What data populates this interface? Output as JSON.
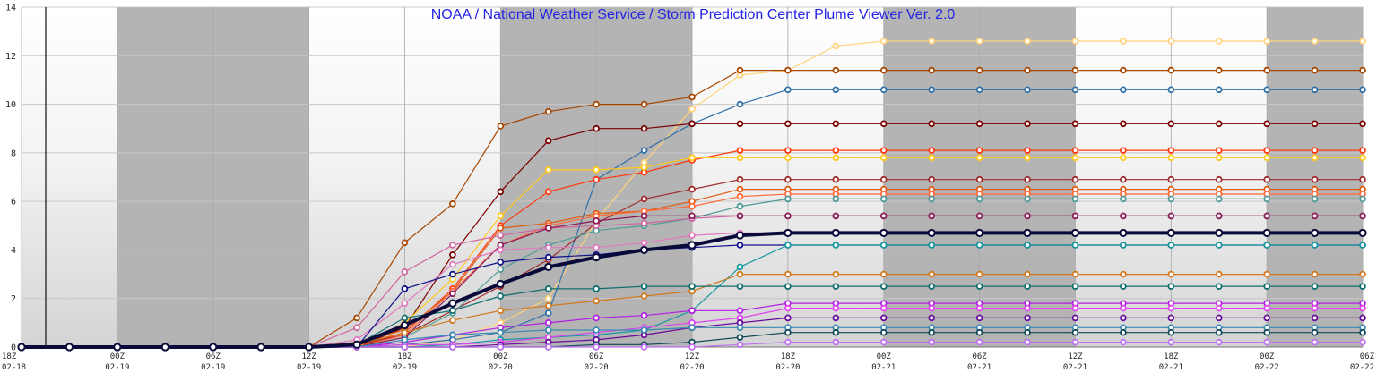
{
  "chart_data": {
    "type": "line",
    "title": "NOAA / National Weather Service / Storm Prediction Center Plume Viewer Ver. 2.0",
    "xlabel": "",
    "ylabel": "",
    "ylim": [
      0,
      14
    ],
    "y_ticks": [
      "0",
      "2",
      "4",
      "6",
      "8",
      "10",
      "12",
      "14"
    ],
    "x_tick_labels": [
      [
        "18Z",
        "02-18"
      ],
      [
        "00Z",
        "02-19"
      ],
      [
        "06Z",
        "02-19"
      ],
      [
        "12Z",
        "02-19"
      ],
      [
        "18Z",
        "02-19"
      ],
      [
        "00Z",
        "02-20"
      ],
      [
        "06Z",
        "02-20"
      ],
      [
        "12Z",
        "02-20"
      ],
      [
        "18Z",
        "02-20"
      ],
      [
        "00Z",
        "02-21"
      ],
      [
        "06Z",
        "02-21"
      ],
      [
        "12Z",
        "02-21"
      ],
      [
        "18Z",
        "02-21"
      ],
      [
        "00Z",
        "02-22"
      ],
      [
        "06Z",
        "02-22"
      ]
    ],
    "x_hours": [
      0,
      3,
      6,
      9,
      12,
      15,
      18,
      21,
      24,
      27,
      30,
      33,
      36,
      39,
      42,
      45,
      48,
      51,
      54,
      57,
      60,
      63,
      66,
      69,
      72,
      75,
      78,
      81,
      84
    ],
    "night_shading": [
      [
        6,
        18
      ],
      [
        30,
        42
      ],
      [
        54,
        66
      ],
      [
        78,
        84
      ]
    ],
    "grid": true,
    "series": [
      {
        "color": "#ffd27a",
        "values": [
          0,
          0,
          0,
          0,
          0,
          0,
          0,
          0,
          0,
          0.3,
          1.0,
          2.0,
          5.2,
          7.6,
          9.8,
          11.2,
          11.4,
          12.4,
          12.6,
          12.6,
          12.6,
          12.6,
          12.6,
          12.6,
          12.6,
          12.6,
          12.6,
          12.6,
          12.6
        ]
      },
      {
        "color": "#a64600",
        "values": [
          0,
          0,
          0,
          0,
          0,
          0,
          0,
          1.2,
          4.3,
          5.9,
          9.1,
          9.7,
          10.0,
          10.0,
          10.3,
          11.4,
          11.4,
          11.4,
          11.4,
          11.4,
          11.4,
          11.4,
          11.4,
          11.4,
          11.4,
          11.4,
          11.4,
          11.4,
          11.4
        ]
      },
      {
        "color": "#2f6fa8",
        "values": [
          0,
          0,
          0,
          0,
          0,
          0,
          0,
          0,
          0.1,
          0.3,
          0.6,
          1.4,
          6.9,
          8.1,
          9.2,
          10.0,
          10.6,
          10.6,
          10.6,
          10.6,
          10.6,
          10.6,
          10.6,
          10.6,
          10.6,
          10.6,
          10.6,
          10.6,
          10.6
        ]
      },
      {
        "color": "#7a0000",
        "values": [
          0,
          0,
          0,
          0,
          0,
          0,
          0,
          0,
          0.8,
          3.8,
          6.4,
          8.5,
          9.0,
          9.0,
          9.2,
          9.2,
          9.2,
          9.2,
          9.2,
          9.2,
          9.2,
          9.2,
          9.2,
          9.2,
          9.2,
          9.2,
          9.2,
          9.2,
          9.2
        ]
      },
      {
        "color": "#ff3a10",
        "values": [
          0,
          0,
          0,
          0,
          0,
          0,
          0,
          0,
          0.6,
          2.4,
          5.0,
          6.4,
          6.9,
          7.2,
          7.7,
          8.1,
          8.1,
          8.1,
          8.1,
          8.1,
          8.1,
          8.1,
          8.1,
          8.1,
          8.1,
          8.1,
          8.1,
          8.1,
          8.1
        ]
      },
      {
        "color": "#ffc81a",
        "values": [
          0,
          0,
          0,
          0,
          0,
          0,
          0,
          0,
          1.0,
          2.8,
          5.4,
          7.3,
          7.3,
          7.4,
          7.8,
          7.8,
          7.8,
          7.8,
          7.8,
          7.8,
          7.8,
          7.8,
          7.8,
          7.8,
          7.8,
          7.8,
          7.8,
          7.8,
          7.8
        ]
      },
      {
        "color": "#9e2a2a",
        "values": [
          0,
          0,
          0,
          0,
          0,
          0,
          0,
          0.1,
          0.5,
          1.5,
          2.5,
          3.6,
          5.1,
          6.1,
          6.5,
          6.9,
          6.9,
          6.9,
          6.9,
          6.9,
          6.9,
          6.9,
          6.9,
          6.9,
          6.9,
          6.9,
          6.9,
          6.9,
          6.9
        ]
      },
      {
        "color": "#e05a10",
        "values": [
          0,
          0,
          0,
          0,
          0,
          0,
          0,
          0.2,
          0.7,
          2.3,
          4.9,
          5.1,
          5.5,
          5.6,
          6.0,
          6.5,
          6.5,
          6.5,
          6.5,
          6.5,
          6.5,
          6.5,
          6.5,
          6.5,
          6.5,
          6.5,
          6.5,
          6.5,
          6.5
        ]
      },
      {
        "color": "#ff6a3a",
        "values": [
          0,
          0,
          0,
          0,
          0,
          0,
          0,
          0,
          0.5,
          2.3,
          4.2,
          5.0,
          5.4,
          5.6,
          5.8,
          6.2,
          6.3,
          6.3,
          6.3,
          6.3,
          6.3,
          6.3,
          6.3,
          6.3,
          6.3,
          6.3,
          6.3,
          6.3,
          6.3
        ]
      },
      {
        "color": "#4e9a96",
        "values": [
          0,
          0,
          0,
          0,
          0,
          0,
          0,
          0,
          0.4,
          1.4,
          3.2,
          4.2,
          4.8,
          5.0,
          5.3,
          5.8,
          6.1,
          6.1,
          6.1,
          6.1,
          6.1,
          6.1,
          6.1,
          6.1,
          6.1,
          6.1,
          6.1,
          6.1,
          6.1
        ]
      },
      {
        "color": "#d066a0",
        "values": [
          0,
          0,
          0,
          0,
          0,
          0,
          0,
          0.8,
          3.1,
          4.2,
          4.6,
          4.9,
          5.0,
          5.1,
          5.3,
          5.4,
          5.4,
          5.4,
          5.4,
          5.4,
          5.4,
          5.4,
          5.4,
          5.4,
          5.4,
          5.4,
          5.4,
          5.4,
          5.4
        ]
      },
      {
        "color": "#8a1a55",
        "values": [
          0,
          0,
          0,
          0,
          0,
          0,
          0,
          0,
          0.4,
          2.2,
          4.2,
          4.9,
          5.2,
          5.4,
          5.4,
          5.4,
          5.4,
          5.4,
          5.4,
          5.4,
          5.4,
          5.4,
          5.4,
          5.4,
          5.4,
          5.4,
          5.4,
          5.4,
          5.4
        ]
      },
      {
        "color": "#e079c0",
        "values": [
          0,
          0,
          0,
          0,
          0,
          0,
          0,
          0.3,
          1.8,
          3.4,
          4.0,
          4.1,
          4.1,
          4.3,
          4.6,
          4.7,
          4.7,
          4.7,
          4.7,
          4.7,
          4.7,
          4.7,
          4.7,
          4.7,
          4.7,
          4.7,
          4.7,
          4.7,
          4.7
        ]
      },
      {
        "color": "#0a0a3a",
        "values": [
          0,
          0,
          0,
          0,
          0,
          0,
          0,
          0.1,
          0.9,
          1.8,
          2.6,
          3.3,
          3.7,
          4.0,
          4.2,
          4.6,
          4.7,
          4.7,
          4.7,
          4.7,
          4.7,
          4.7,
          4.7,
          4.7,
          4.7,
          4.7,
          4.7,
          4.7,
          4.7
        ],
        "bold": true
      },
      {
        "color": "#10108a",
        "values": [
          0,
          0,
          0,
          0,
          0,
          0,
          0,
          0,
          2.4,
          3.0,
          3.5,
          3.7,
          3.8,
          4.0,
          4.1,
          4.2,
          4.2,
          4.2,
          4.2,
          4.2,
          4.2,
          4.2,
          4.2,
          4.2,
          4.2,
          4.2,
          4.2,
          4.2,
          4.2
        ]
      },
      {
        "color": "#1a9aa0",
        "values": [
          0,
          0,
          0,
          0,
          0,
          0,
          0,
          0,
          0,
          0.1,
          0.3,
          0.4,
          0.5,
          0.7,
          1.5,
          3.3,
          4.2,
          4.2,
          4.2,
          4.2,
          4.2,
          4.2,
          4.2,
          4.2,
          4.2,
          4.2,
          4.2,
          4.2,
          4.2
        ]
      },
      {
        "color": "#d07a20",
        "values": [
          0,
          0,
          0,
          0,
          0,
          0,
          0,
          0.1,
          0.6,
          1.1,
          1.5,
          1.7,
          1.9,
          2.1,
          2.3,
          3.0,
          3.0,
          3.0,
          3.0,
          3.0,
          3.0,
          3.0,
          3.0,
          3.0,
          3.0,
          3.0,
          3.0,
          3.0,
          3.0
        ]
      },
      {
        "color": "#0e6e6e",
        "values": [
          0,
          0,
          0,
          0,
          0,
          0,
          0,
          0.1,
          1.2,
          1.5,
          2.1,
          2.4,
          2.4,
          2.5,
          2.5,
          2.5,
          2.5,
          2.5,
          2.5,
          2.5,
          2.5,
          2.5,
          2.5,
          2.5,
          2.5,
          2.5,
          2.5,
          2.5,
          2.5
        ]
      },
      {
        "color": "#b020e0",
        "values": [
          0,
          0,
          0,
          0,
          0,
          0,
          0,
          0,
          0.2,
          0.5,
          0.8,
          1.0,
          1.2,
          1.3,
          1.5,
          1.5,
          1.8,
          1.8,
          1.8,
          1.8,
          1.8,
          1.8,
          1.8,
          1.8,
          1.8,
          1.8,
          1.8,
          1.8,
          1.8
        ]
      },
      {
        "color": "#dd44ee",
        "values": [
          0,
          0,
          0,
          0,
          0,
          0,
          0,
          0,
          0.1,
          0.1,
          0.2,
          0.4,
          0.6,
          0.8,
          1.0,
          1.2,
          1.6,
          1.6,
          1.6,
          1.6,
          1.6,
          1.6,
          1.6,
          1.6,
          1.6,
          1.6,
          1.6,
          1.6,
          1.6
        ]
      },
      {
        "color": "#6a0a9a",
        "values": [
          0,
          0,
          0,
          0,
          0,
          0,
          0,
          0,
          0,
          0,
          0.1,
          0.2,
          0.3,
          0.5,
          0.8,
          1.0,
          1.2,
          1.2,
          1.2,
          1.2,
          1.2,
          1.2,
          1.2,
          1.2,
          1.2,
          1.2,
          1.2,
          1.2,
          1.2
        ]
      },
      {
        "color": "#3a8ab0",
        "values": [
          0,
          0,
          0,
          0,
          0,
          0,
          0,
          0,
          0.3,
          0.5,
          0.6,
          0.7,
          0.7,
          0.7,
          0.8,
          0.8,
          0.8,
          0.8,
          0.8,
          0.8,
          0.8,
          0.8,
          0.8,
          0.8,
          0.8,
          0.8,
          0.8,
          0.8,
          0.8
        ]
      },
      {
        "color": "#104858",
        "values": [
          0,
          0,
          0,
          0,
          0,
          0,
          0,
          0,
          0,
          0,
          0,
          0,
          0.1,
          0.1,
          0.2,
          0.4,
          0.6,
          0.6,
          0.6,
          0.6,
          0.6,
          0.6,
          0.6,
          0.6,
          0.6,
          0.6,
          0.6,
          0.6,
          0.6
        ]
      },
      {
        "color": "#c070f0",
        "values": [
          0,
          0,
          0,
          0,
          0,
          0,
          0,
          0,
          0,
          0,
          0,
          0,
          0,
          0,
          0,
          0.1,
          0.2,
          0.2,
          0.2,
          0.2,
          0.2,
          0.2,
          0.2,
          0.2,
          0.2,
          0.2,
          0.2,
          0.2,
          0.2
        ]
      }
    ]
  }
}
